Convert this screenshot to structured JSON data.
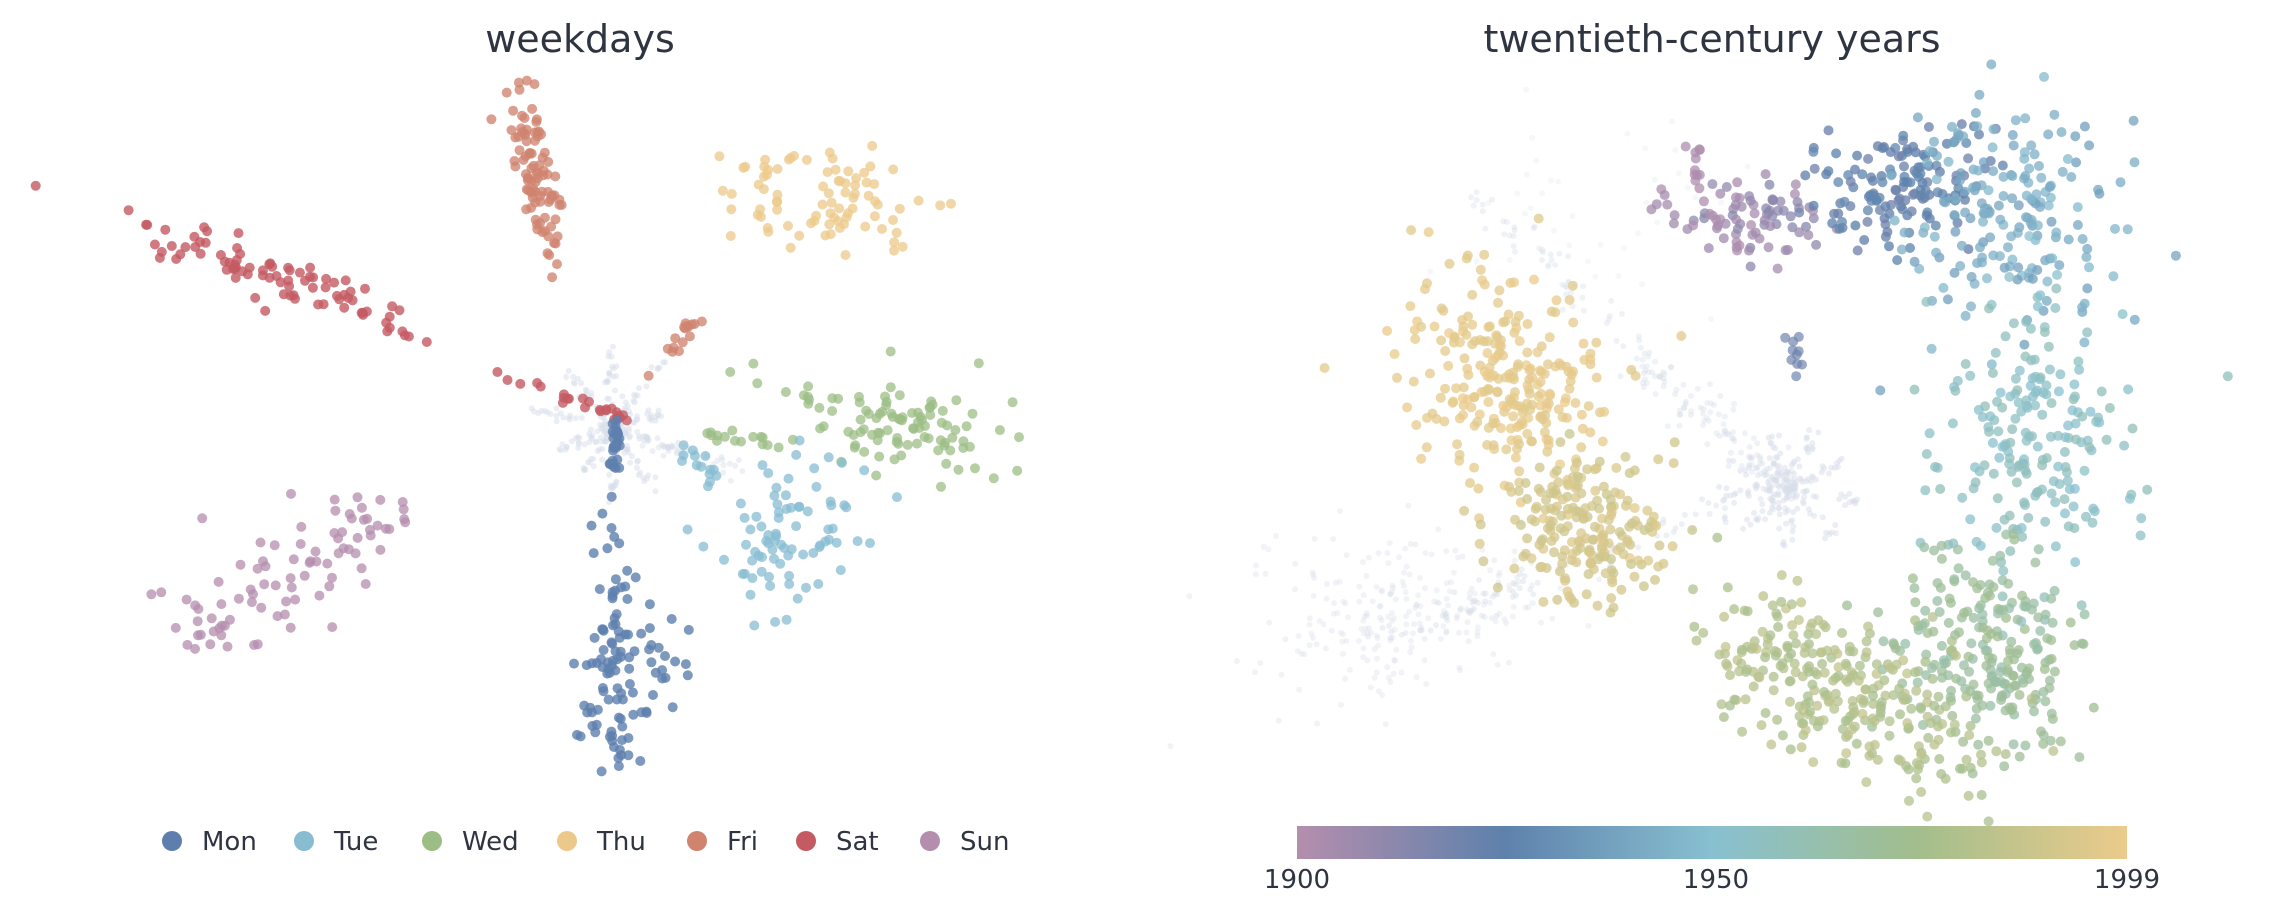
{
  "chart_data": [
    {
      "type": "scatter",
      "title": "weekdays",
      "legend": "bottom",
      "series": [
        {
          "name": "Mon",
          "color": "#5e7fae"
        },
        {
          "name": "Tue",
          "color": "#87bcd1"
        },
        {
          "name": "Wed",
          "color": "#9cbd85"
        },
        {
          "name": "Thu",
          "color": "#ecc98a"
        },
        {
          "name": "Fri",
          "color": "#d08470"
        },
        {
          "name": "Sat",
          "color": "#c45a62"
        },
        {
          "name": "Sun",
          "color": "#b48ead"
        }
      ],
      "background_points_color": "#d8dee9"
    },
    {
      "type": "scatter",
      "title": "twentieth-century years",
      "colorbar": {
        "ticks": [
          "1900",
          "1950",
          "1999"
        ],
        "range": [
          1900,
          1999
        ],
        "colors": [
          "#b48ead",
          "#5e81ac",
          "#88c0d0",
          "#a3be8c",
          "#ebcb8b"
        ]
      },
      "background_points_color": "#d8dee9"
    }
  ]
}
